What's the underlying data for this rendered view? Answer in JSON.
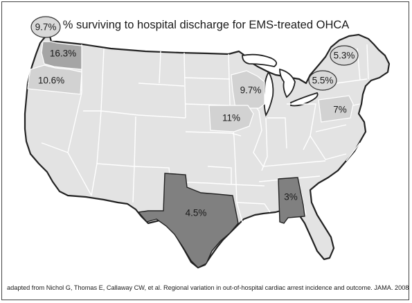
{
  "title": "% surviving to hospital discharge for EMS-treated OHCA",
  "credit": "adapted from Nichol G, Thomas E, Callaway CW, et al. Regional variation in out-of-hospital cardiac arrest incidence and outcome. JAMA. 2008",
  "colors": {
    "land": "#e3e3e3",
    "state_border": "#ffffff",
    "outline": "#222222",
    "highlight_light": "#d2d2d2",
    "highlight_mid": "#a5a5a5",
    "highlight_dark": "#808080",
    "callout_fill": "#d9d9d9"
  },
  "regions": [
    {
      "id": "seattle-callout",
      "label": "9.7%",
      "shading": "callout"
    },
    {
      "id": "washington",
      "label": "16.3%",
      "shading": "mid"
    },
    {
      "id": "oregon",
      "label": "10.6%",
      "shading": "light"
    },
    {
      "id": "wisconsin",
      "label": "9.7%",
      "shading": "light"
    },
    {
      "id": "iowa",
      "label": "11%",
      "shading": "light"
    },
    {
      "id": "pennsylvania",
      "label": "7%",
      "shading": "light"
    },
    {
      "id": "toronto-callout",
      "label": "5.3%",
      "shading": "callout"
    },
    {
      "id": "ottawa-callout",
      "label": "5.5%",
      "shading": "callout"
    },
    {
      "id": "texas",
      "label": "4.5%",
      "shading": "dark"
    },
    {
      "id": "alabama",
      "label": "3%",
      "shading": "dark"
    }
  ]
}
